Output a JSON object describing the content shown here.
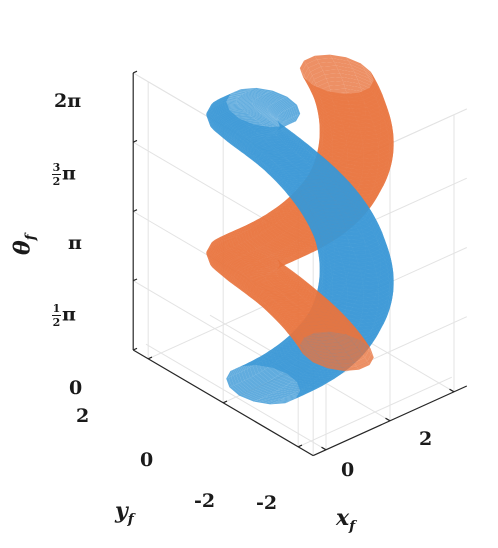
{
  "chart_data": {
    "type": "surface-3d",
    "title": "",
    "xlabel": "x",
    "xlabel_sub": "f",
    "ylabel": "y",
    "ylabel_sub": "f",
    "zlabel": "θ",
    "zlabel_sub": "f",
    "xlim": [
      -2.4,
      2.4
    ],
    "ylim": [
      -2.4,
      2.4
    ],
    "zlim": [
      0,
      6.2832
    ],
    "x_ticks": [
      {
        "value": -2,
        "label": "-2"
      },
      {
        "value": 0,
        "label": "0"
      },
      {
        "value": 2,
        "label": "2"
      }
    ],
    "y_ticks": [
      {
        "value": 2,
        "label": "2"
      },
      {
        "value": 0,
        "label": "0"
      },
      {
        "value": -2,
        "label": "-2"
      }
    ],
    "z_ticks": [
      {
        "value": 0,
        "label": "0"
      },
      {
        "value": 1.5708,
        "num": "1",
        "den": "2",
        "sym": "π"
      },
      {
        "value": 3.1416,
        "label": "π"
      },
      {
        "value": 4.7124,
        "num": "3",
        "den": "2",
        "sym": "π"
      },
      {
        "value": 6.2832,
        "label": "2π"
      }
    ],
    "grid": true,
    "series": [
      {
        "color": "#E8743F",
        "phase": 0
      },
      {
        "color": "#3A97D6",
        "phase": 3.1416
      }
    ],
    "colors": {
      "orange": "#E8743F",
      "blue": "#3A97D6"
    }
  }
}
